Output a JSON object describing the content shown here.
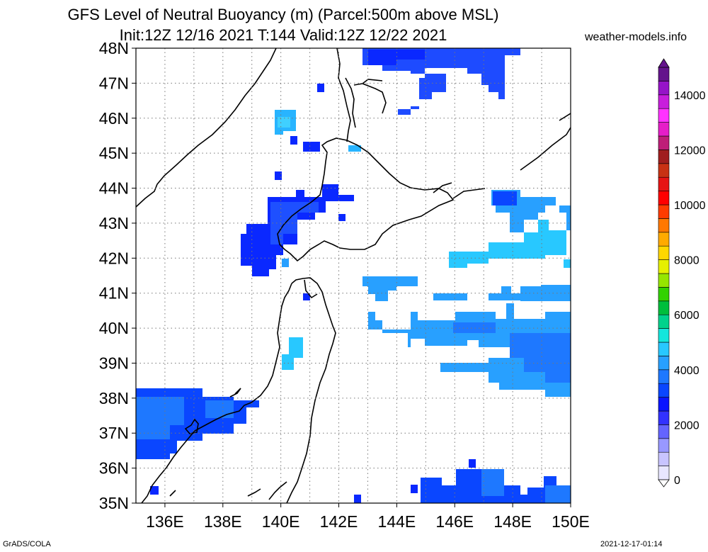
{
  "header": {
    "title_line1": "GFS Level of Neutral Buoyancy (m) (Parcel:500m above MSL)",
    "title_line2": "Init:12Z 12/16 2021 T:144 Valid:12Z 12/22 2021",
    "site": "weather-models.info"
  },
  "map": {
    "lat_labels": [
      "48N",
      "47N",
      "46N",
      "45N",
      "44N",
      "43N",
      "42N",
      "41N",
      "40N",
      "39N",
      "38N",
      "37N",
      "36N",
      "35N"
    ],
    "lon_labels": [
      "136E",
      "138E",
      "140E",
      "142E",
      "144E",
      "146E",
      "148E",
      "150E"
    ],
    "lat_range": [
      35,
      48
    ],
    "lon_range": [
      135,
      150
    ],
    "grid": "dotted",
    "coastline_color": "#000000"
  },
  "colorbar": {
    "labels": [
      "0",
      "2000",
      "4000",
      "6000",
      "8000",
      "10000",
      "12000",
      "14000"
    ],
    "range": [
      0,
      15000
    ],
    "colors": [
      "#e8e6ff",
      "#c8c4ff",
      "#9898ff",
      "#6464ff",
      "#3232ff",
      "#0a14ff",
      "#0a46ff",
      "#1e78ff",
      "#28a0ff",
      "#28c8ff",
      "#14e6dc",
      "#00d28c",
      "#00be3c",
      "#32d200",
      "#96e600",
      "#e6f000",
      "#ffd700",
      "#ffaa00",
      "#ff7800",
      "#ff3c00",
      "#ff0000",
      "#e61414",
      "#c83214",
      "#a01e1e",
      "#be1e78",
      "#e61ec8",
      "#ff32ff",
      "#c81edc",
      "#9614c8",
      "#64148c"
    ]
  },
  "footer": {
    "left": "GrADS/COLA",
    "right": "2021-12-17-01:14"
  }
}
